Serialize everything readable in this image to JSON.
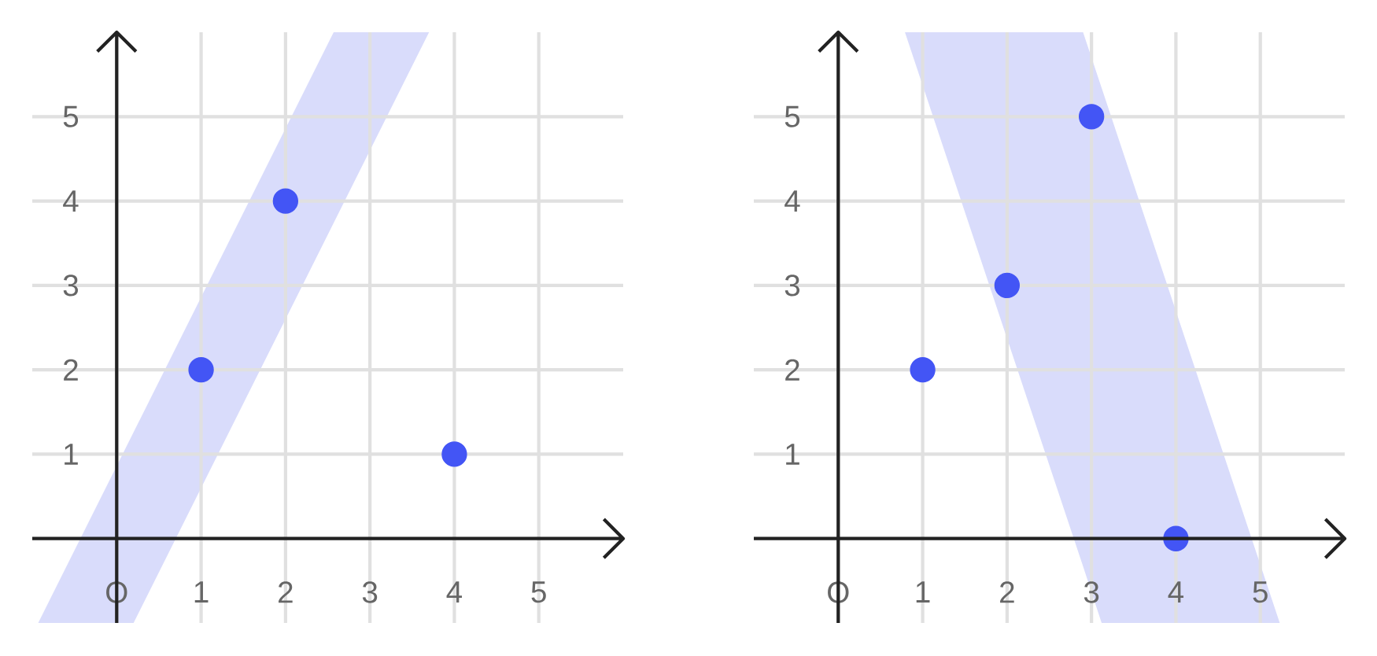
{
  "chart_data": [
    {
      "type": "scatter",
      "xlim": [
        -1,
        6
      ],
      "ylim": [
        -1,
        6
      ],
      "xticks": [
        {
          "value": 0,
          "label": "O"
        },
        1,
        2,
        3,
        4,
        5
      ],
      "yticks": [
        1,
        2,
        3,
        4,
        5
      ],
      "grid": true,
      "series": [
        {
          "type": "line",
          "color": "#d9dcfb",
          "x": [
            -0.93,
            0.2,
            2.57,
            3.7
          ],
          "values": [
            null,
            null,
            null,
            null
          ],
          "lower": [
            -1,
            -1,
            3.74,
            6
          ],
          "upper": [
            -1,
            1.26,
            6,
            6
          ]
        },
        {
          "color": "#4355f5",
          "marker": "circle",
          "x": [
            1,
            2,
            4
          ],
          "values": [
            2,
            4,
            1
          ]
        }
      ]
    },
    {
      "type": "scatter",
      "xlim": [
        -1,
        6
      ],
      "ylim": [
        -1,
        6
      ],
      "xticks": [
        {
          "value": 0,
          "label": "O"
        },
        1,
        2,
        3,
        4,
        5
      ],
      "yticks": [
        1,
        2,
        3,
        4,
        5
      ],
      "grid": true,
      "series": [
        {
          "type": "line",
          "color": "#d9dcfb",
          "x": [
            0.79,
            2.9,
            3.12,
            5.23
          ],
          "values": [
            null,
            null,
            null,
            null
          ],
          "lower": [
            6,
            -0.33,
            -1,
            -1
          ],
          "upper": [
            6,
            6,
            5.34,
            -1
          ]
        },
        {
          "color": "#4355f5",
          "marker": "circle",
          "x": [
            1,
            2,
            3,
            4
          ],
          "values": [
            2,
            3,
            5,
            0
          ]
        }
      ]
    }
  ]
}
